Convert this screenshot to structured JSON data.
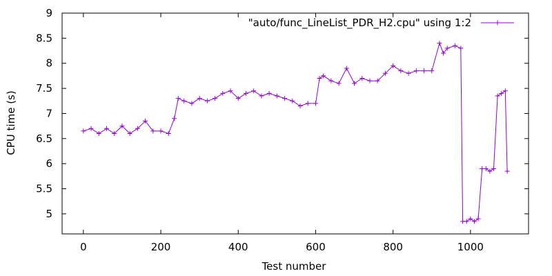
{
  "chart_data": {
    "type": "line",
    "title": "",
    "xlabel": "Test number",
    "ylabel": "CPU time (s)",
    "xlim": [
      -55,
      1150
    ],
    "ylim": [
      4.6,
      9
    ],
    "xticks": [
      0,
      200,
      400,
      600,
      800,
      1000
    ],
    "xtick_labels": [
      "0",
      "200",
      "400",
      "600",
      "800",
      "1000"
    ],
    "yticks": [
      5,
      5.5,
      6,
      6.5,
      7,
      7.5,
      8,
      8.5,
      9
    ],
    "ytick_labels": [
      "5",
      "5.5",
      "6",
      "6.5",
      "7",
      "7.5",
      "8",
      "8.5",
      "9"
    ],
    "grid": false,
    "legend_position": "top-right",
    "marker": "plus",
    "color": "#9400d3",
    "series": [
      {
        "name": "\"auto/func_LineList_PDR_H2.cpu\" using 1:2",
        "x": [
          0,
          20,
          40,
          60,
          80,
          100,
          120,
          140,
          160,
          180,
          200,
          220,
          235,
          245,
          260,
          280,
          300,
          320,
          340,
          360,
          380,
          400,
          420,
          440,
          460,
          480,
          500,
          520,
          540,
          560,
          580,
          600,
          610,
          620,
          640,
          660,
          680,
          700,
          720,
          740,
          760,
          780,
          800,
          820,
          840,
          860,
          880,
          900,
          920,
          930,
          940,
          960,
          975,
          980,
          990,
          1000,
          1010,
          1020,
          1030,
          1040,
          1050,
          1060,
          1070,
          1080,
          1090,
          1095
        ],
        "y": [
          6.65,
          6.7,
          6.6,
          6.7,
          6.6,
          6.75,
          6.6,
          6.7,
          6.85,
          6.65,
          6.65,
          6.6,
          6.9,
          7.3,
          7.25,
          7.2,
          7.3,
          7.25,
          7.3,
          7.4,
          7.45,
          7.3,
          7.4,
          7.45,
          7.35,
          7.4,
          7.35,
          7.3,
          7.25,
          7.15,
          7.2,
          7.2,
          7.7,
          7.75,
          7.65,
          7.6,
          7.9,
          7.6,
          7.7,
          7.65,
          7.65,
          7.8,
          7.95,
          7.85,
          7.8,
          7.85,
          7.85,
          7.85,
          8.4,
          8.2,
          8.3,
          8.35,
          8.3,
          4.85,
          4.85,
          4.9,
          4.85,
          4.9,
          5.9,
          5.9,
          5.85,
          5.9,
          7.35,
          7.4,
          7.45,
          5.85
        ]
      }
    ]
  }
}
